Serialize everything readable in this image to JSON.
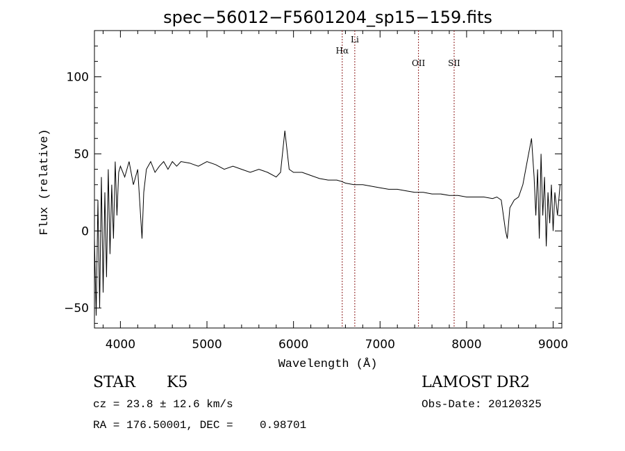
{
  "chart_data": {
    "type": "line",
    "title": "spec−56012−F5601204_sp15−159.fits",
    "xlabel": "Wavelength (Å)",
    "ylabel": "Flux (relative)",
    "xlim": [
      3700,
      9100
    ],
    "ylim": [
      -63,
      130
    ],
    "xticks": [
      4000,
      5000,
      6000,
      7000,
      8000,
      9000
    ],
    "yticks": [
      -50,
      0,
      50,
      100
    ],
    "ytick_labels": [
      "−50",
      "0",
      "50",
      "100"
    ],
    "grid": false,
    "series": [
      {
        "x": [
          3700,
          3720,
          3740,
          3760,
          3780,
          3800,
          3820,
          3840,
          3860,
          3880,
          3900,
          3920,
          3940,
          3960,
          3980,
          4000,
          4050,
          4100,
          4150,
          4200,
          4250,
          4270,
          4300,
          4350,
          4400,
          4450,
          4500,
          4550,
          4600,
          4650,
          4700,
          4800,
          4900,
          5000,
          5100,
          5200,
          5300,
          5400,
          5500,
          5600,
          5700,
          5800,
          5850,
          5900,
          5950,
          6000,
          6100,
          6200,
          6300,
          6400,
          6500,
          6560,
          6600,
          6700,
          6800,
          6900,
          7000,
          7100,
          7200,
          7300,
          7400,
          7500,
          7600,
          7700,
          7800,
          7900,
          8000,
          8100,
          8200,
          8300,
          8350,
          8400,
          8430,
          8450,
          8470,
          8500,
          8550,
          8600,
          8650,
          8700,
          8750,
          8780,
          8800,
          8820,
          8840,
          8860,
          8880,
          8900,
          8920,
          8940,
          8960,
          8980,
          9000,
          9020,
          9050,
          9080
        ],
        "y": [
          -5,
          -55,
          20,
          -50,
          35,
          -40,
          25,
          -30,
          40,
          -15,
          30,
          -5,
          45,
          10,
          38,
          42,
          35,
          45,
          30,
          40,
          -5,
          25,
          40,
          45,
          38,
          42,
          45,
          40,
          45,
          42,
          45,
          44,
          42,
          45,
          43,
          40,
          42,
          40,
          38,
          40,
          38,
          35,
          38,
          65,
          40,
          38,
          38,
          36,
          34,
          33,
          33,
          32,
          31,
          30,
          30,
          29,
          28,
          27,
          27,
          26,
          25,
          25,
          24,
          24,
          23,
          23,
          22,
          22,
          22,
          21,
          22,
          20,
          8,
          0,
          -5,
          15,
          20,
          22,
          30,
          45,
          60,
          35,
          10,
          40,
          -5,
          50,
          10,
          35,
          -10,
          25,
          5,
          30,
          0,
          25,
          10,
          30
        ]
      }
    ],
    "annotations": [
      {
        "label": "Hα",
        "x": 6563
      },
      {
        "label": "Li",
        "x": 6708
      },
      {
        "label": "OII",
        "x": 7444
      },
      {
        "label": "SII",
        "x": 7856
      }
    ]
  },
  "info": {
    "class": "STAR",
    "subclass": "K5",
    "survey": "LAMOST DR2",
    "cz": "cz = 23.8 ± 12.6 km/s",
    "obs_date": "Obs-Date: 20120325",
    "coords": "RA = 176.50001, DEC =    0.98701"
  },
  "colors": {
    "line": "#000000",
    "marker": "#8b1a1a",
    "axis": "#000000"
  }
}
